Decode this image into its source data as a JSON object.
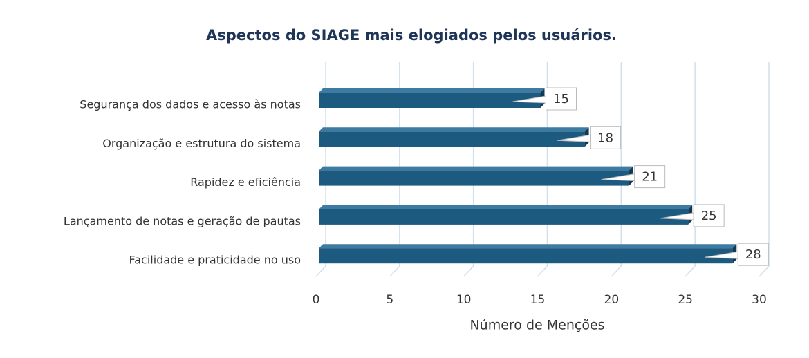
{
  "chart_data": {
    "type": "bar",
    "orientation": "horizontal",
    "title": "Aspectos do SIAGE mais elogiados pelos usuários.",
    "categories": [
      "Segurança dos dados e acesso às notas",
      "Organização e estrutura do sistema",
      "Rapidez e eficiência",
      "Lançamento de notas e geração de pautas",
      "Facilidade e praticidade no uso"
    ],
    "values": [
      15,
      18,
      21,
      25,
      28
    ],
    "color": "#1d5a80",
    "xlabel": "Número de Menções",
    "xlim": [
      0,
      30
    ],
    "xticks": [
      0,
      5,
      10,
      15,
      20,
      25,
      30
    ],
    "grid": true
  }
}
